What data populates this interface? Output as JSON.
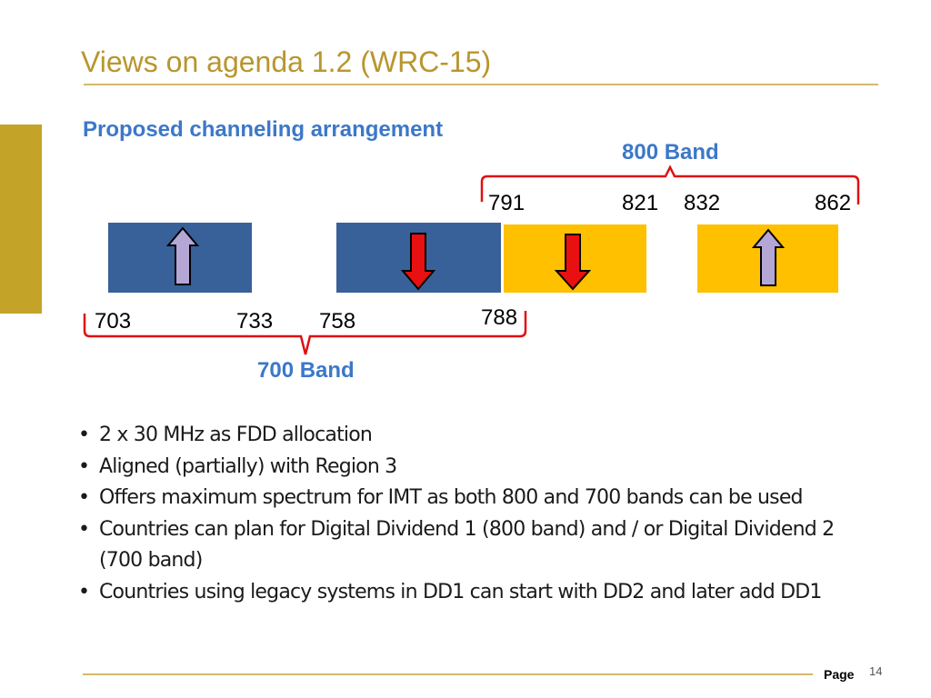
{
  "slide": {
    "title": "Views on agenda 1.2 (WRC-15)",
    "subtitle": "Proposed channeling arrangement",
    "page_label": "Page",
    "page_number": "14"
  },
  "diagram": {
    "band_800_label": "800 Band",
    "band_700_label": "700 Band",
    "freq_labels_top": [
      "791",
      "821",
      "832",
      "862"
    ],
    "freq_labels_bottom": [
      "703",
      "733",
      "758",
      "788"
    ],
    "blocks": [
      {
        "name": "700-uplink",
        "color": "#38619A",
        "arrow": "up"
      },
      {
        "name": "700-downlink",
        "color": "#38619A",
        "arrow": "down"
      },
      {
        "name": "800-downlink",
        "color": "#FFC000",
        "arrow": "down"
      },
      {
        "name": "800-uplink",
        "color": "#FFC000",
        "arrow": "up"
      }
    ],
    "colors": {
      "band_700": "#38619A",
      "band_800": "#FFC000",
      "uplink_arrow": "#B4A7D6",
      "downlink_arrow": "#E81010",
      "brace": "#E01010",
      "accent_title": "#B8962E",
      "accent_blue": "#3C78C8"
    }
  },
  "bullets": [
    "2 x 30 MHz as FDD allocation",
    "Aligned (partially) with Region 3",
    "Offers maximum spectrum for IMT as both 800 and 700 bands can be used",
    "Countries can plan for Digital Dividend 1 (800 band) and / or Digital Dividend 2 (700 band)",
    "Countries using legacy systems in DD1 can start with DD2 and later add DD1"
  ]
}
